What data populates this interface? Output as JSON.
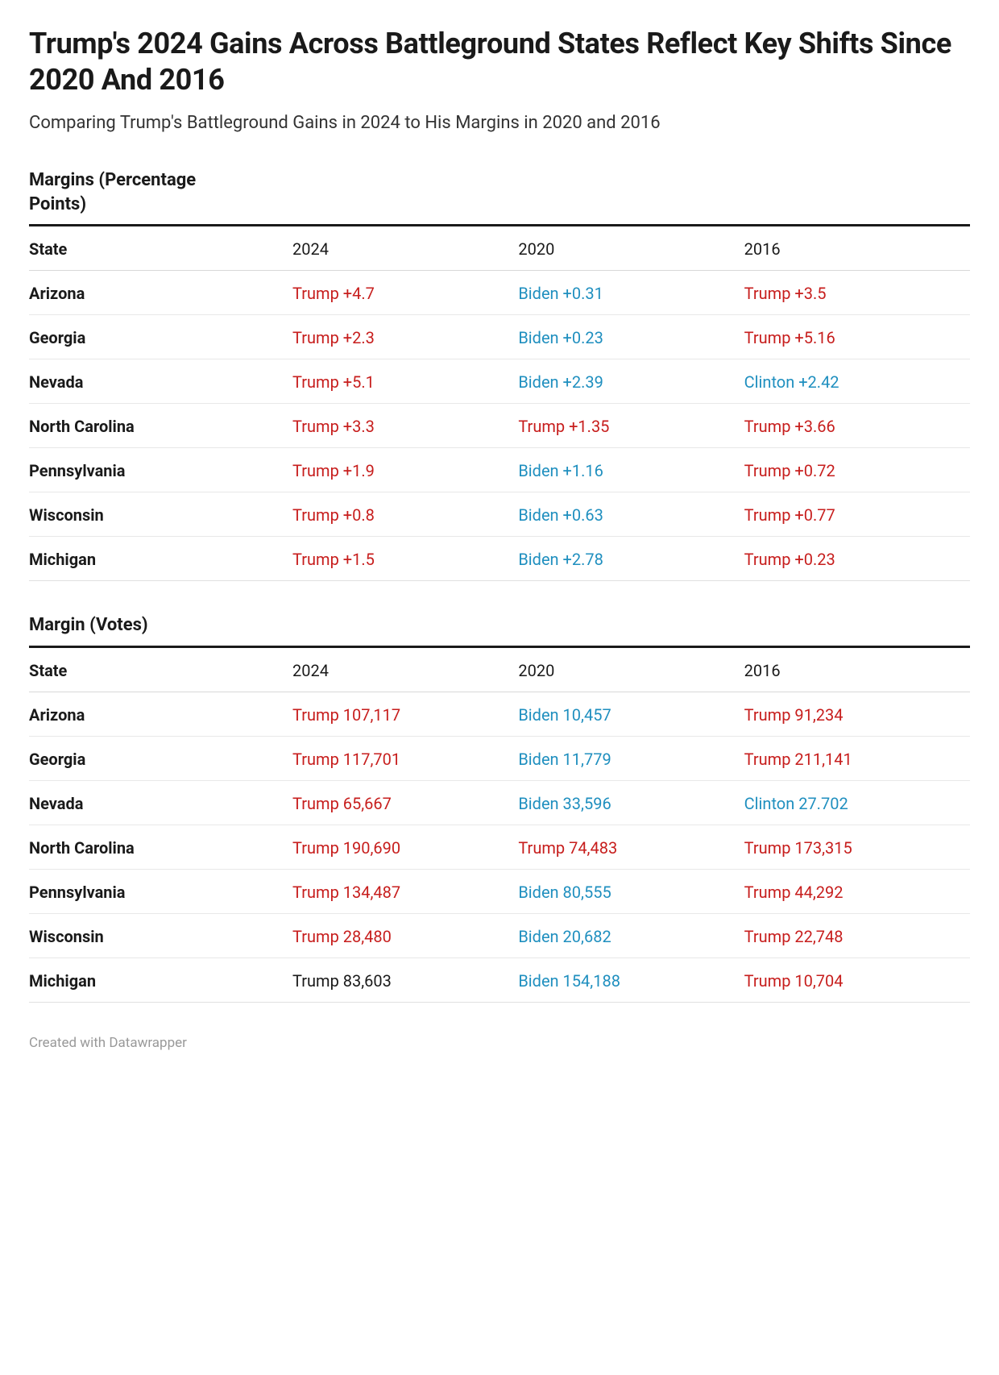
{
  "colors": {
    "trump": "#c71e1d",
    "biden_clinton": "#1f8fbf",
    "text": "#1a1a1a",
    "border_heavy": "#1a1a1a",
    "border_light": "#e8e8e8"
  },
  "title": "Trump's 2024 Gains Across Battleground States Reflect Key Shifts Since 2020 And 2016",
  "subtitle": "Comparing Trump's Battleground Gains in 2024 to His Margins in 2020 and 2016",
  "sections": [
    {
      "title": "Margins (Percentage Points)"
    },
    {
      "title": "Margin (Votes)"
    }
  ],
  "columns": {
    "state": "State",
    "y2024": "2024",
    "y2020": "2020",
    "y2016": "2016"
  },
  "percent_rows": [
    {
      "state": "Arizona",
      "y2024": {
        "text": "Trump +4.7",
        "c": "red"
      },
      "y2020": {
        "text": "Biden +0.31",
        "c": "blue"
      },
      "y2016": {
        "text": "Trump +3.5",
        "c": "red"
      }
    },
    {
      "state": "Georgia",
      "y2024": {
        "text": "Trump +2.3",
        "c": "red"
      },
      "y2020": {
        "text": "Biden +0.23",
        "c": "blue"
      },
      "y2016": {
        "text": "Trump +5.16",
        "c": "red"
      }
    },
    {
      "state": "Nevada",
      "y2024": {
        "text": "Trump +5.1",
        "c": "red"
      },
      "y2020": {
        "text": "Biden +2.39",
        "c": "blue"
      },
      "y2016": {
        "text": "Clinton +2.42",
        "c": "blue"
      }
    },
    {
      "state": "North Carolina",
      "y2024": {
        "text": "Trump +3.3",
        "c": "red"
      },
      "y2020": {
        "text": "Trump +1.35",
        "c": "red"
      },
      "y2016": {
        "text": "Trump +3.66",
        "c": "red"
      }
    },
    {
      "state": "Pennsylvania",
      "y2024": {
        "text": "Trump +1.9",
        "c": "red"
      },
      "y2020": {
        "text": "Biden +1.16",
        "c": "blue"
      },
      "y2016": {
        "text": "Trump +0.72",
        "c": "red"
      }
    },
    {
      "state": "Wisconsin",
      "y2024": {
        "text": "Trump +0.8",
        "c": "red"
      },
      "y2020": {
        "text": "Biden +0.63",
        "c": "blue"
      },
      "y2016": {
        "text": "Trump +0.77",
        "c": "red"
      }
    },
    {
      "state": "Michigan",
      "y2024": {
        "text": "Trump +1.5",
        "c": "red"
      },
      "y2020": {
        "text": "Biden +2.78",
        "c": "blue"
      },
      "y2016": {
        "text": "Trump +0.23",
        "c": "red"
      }
    }
  ],
  "votes_rows": [
    {
      "state": "Arizona",
      "y2024": {
        "text": "Trump 107,117",
        "c": "red"
      },
      "y2020": {
        "text": "Biden 10,457",
        "c": "blue"
      },
      "y2016": {
        "text": "Trump 91,234",
        "c": "red"
      }
    },
    {
      "state": "Georgia",
      "y2024": {
        "text": "Trump 117,701",
        "c": "red"
      },
      "y2020": {
        "text": "Biden 11,779",
        "c": "blue"
      },
      "y2016": {
        "text": "Trump 211,141",
        "c": "red"
      }
    },
    {
      "state": "Nevada",
      "y2024": {
        "text": "Trump 65,667",
        "c": "red"
      },
      "y2020": {
        "text": "Biden 33,596",
        "c": "blue"
      },
      "y2016": {
        "text": "Clinton 27.702",
        "c": "blue"
      }
    },
    {
      "state": "North Carolina",
      "y2024": {
        "text": "Trump 190,690",
        "c": "red"
      },
      "y2020": {
        "text": "Trump 74,483",
        "c": "red"
      },
      "y2016": {
        "text": "Trump 173,315",
        "c": "red"
      }
    },
    {
      "state": "Pennsylvania",
      "y2024": {
        "text": "Trump 134,487",
        "c": "red"
      },
      "y2020": {
        "text": "Biden 80,555",
        "c": "blue"
      },
      "y2016": {
        "text": "Trump 44,292",
        "c": "red"
      }
    },
    {
      "state": "Wisconsin",
      "y2024": {
        "text": "Trump 28,480",
        "c": "red"
      },
      "y2020": {
        "text": "Biden 20,682",
        "c": "blue"
      },
      "y2016": {
        "text": "Trump 22,748",
        "c": "red"
      }
    },
    {
      "state": "Michigan",
      "y2024": {
        "text": "Trump 83,603",
        "c": "black"
      },
      "y2020": {
        "text": "Biden 154,188",
        "c": "blue"
      },
      "y2016": {
        "text": "Trump 10,704",
        "c": "red"
      }
    }
  ],
  "footer": "Created with Datawrapper"
}
